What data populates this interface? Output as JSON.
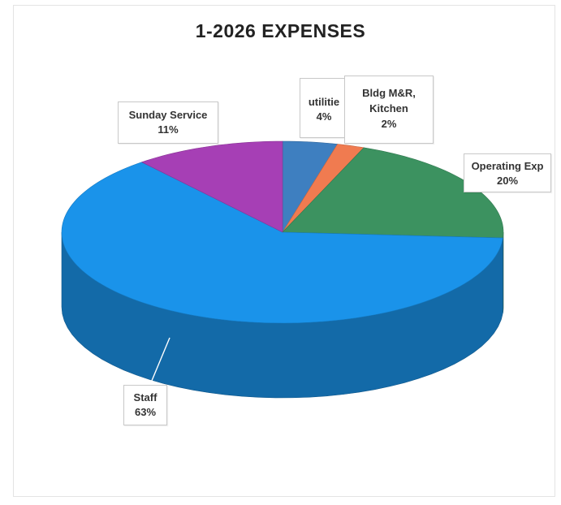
{
  "chart_data": {
    "type": "pie",
    "title": "1-2026 EXPENSES",
    "three_d": true,
    "start_angle": "12 o'clock, clockwise",
    "slices": [
      {
        "label": "utilities",
        "display_label": "utilitie",
        "value": 4,
        "value_label": "4%",
        "color": "#3e7fc0"
      },
      {
        "label": "Bldg M&R, Kitchen",
        "value": 2,
        "value_label": "2%",
        "color": "#f07b50"
      },
      {
        "label": "Operating Exp",
        "value": 20,
        "value_label": "20%",
        "color": "#3c9260"
      },
      {
        "label": "Staff",
        "value": 63,
        "value_label": "63%",
        "color": "#1a93ea"
      },
      {
        "label": "Sunday Service",
        "value": 11,
        "value_label": "11%",
        "color": "#a63fb5"
      }
    ]
  }
}
